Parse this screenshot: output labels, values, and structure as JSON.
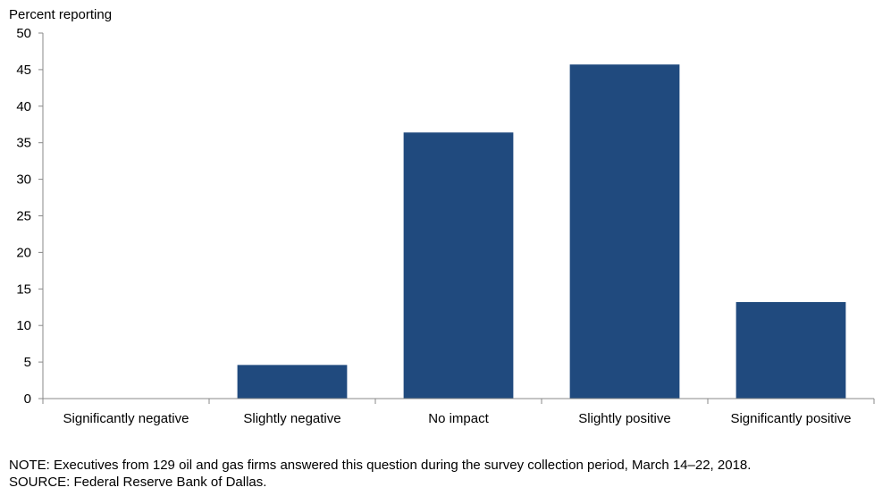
{
  "chart_data": {
    "type": "bar",
    "ylabel": "Percent reporting",
    "xlabel": "",
    "categories": [
      "Significantly negative",
      "Slightly negative",
      "No impact",
      "Slightly positive",
      "Significantly positive"
    ],
    "values": [
      0,
      4.6,
      36.4,
      45.7,
      13.2
    ],
    "ylim": [
      0,
      50
    ],
    "yticks": [
      0,
      5,
      10,
      15,
      20,
      25,
      30,
      35,
      40,
      45,
      50
    ],
    "bar_color": "#204a7e",
    "grid": false
  },
  "notes": {
    "note": "NOTE: Executives from 129 oil and gas firms answered this question during the survey collection period, March 14–22, 2018.",
    "source": "SOURCE: Federal Reserve Bank of Dallas."
  }
}
